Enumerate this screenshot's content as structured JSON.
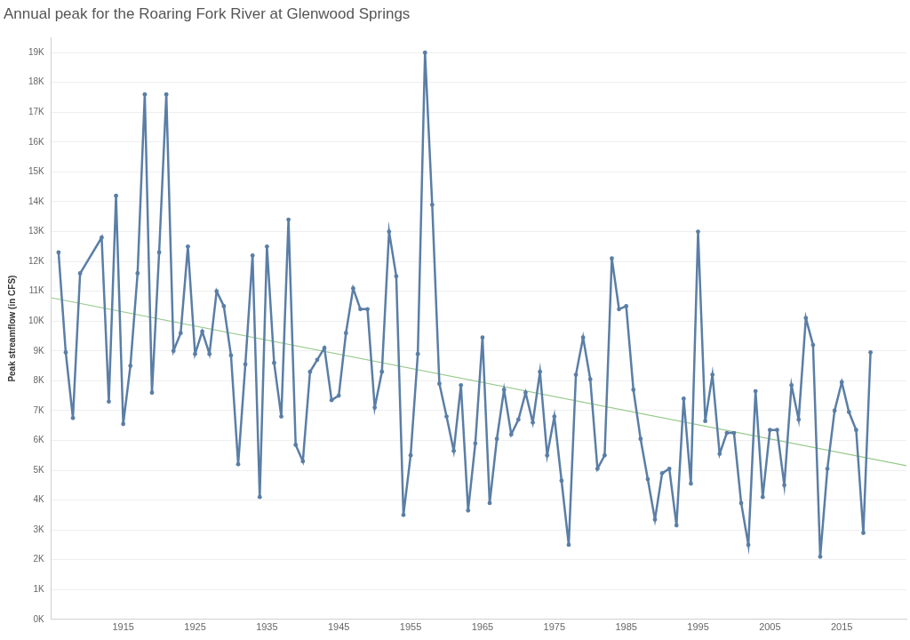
{
  "chart_data": {
    "type": "line",
    "title": "Annual peak for the Roaring Fork River at Glenwood Springs",
    "y_label": "Peak streamflow (in CFS)",
    "x": [
      1906,
      1907,
      1908,
      1909,
      1912,
      1913,
      1914,
      1915,
      1916,
      1917,
      1918,
      1919,
      1920,
      1921,
      1922,
      1923,
      1924,
      1925,
      1926,
      1927,
      1928,
      1929,
      1930,
      1931,
      1932,
      1933,
      1934,
      1935,
      1936,
      1937,
      1938,
      1939,
      1940,
      1941,
      1942,
      1943,
      1944,
      1945,
      1946,
      1947,
      1948,
      1949,
      1950,
      1951,
      1952,
      1953,
      1954,
      1955,
      1956,
      1957,
      1958,
      1959,
      1960,
      1961,
      1962,
      1963,
      1964,
      1965,
      1966,
      1967,
      1968,
      1969,
      1970,
      1971,
      1972,
      1973,
      1974,
      1975,
      1976,
      1977,
      1978,
      1979,
      1980,
      1981,
      1982,
      1983,
      1984,
      1985,
      1986,
      1987,
      1988,
      1989,
      1990,
      1991,
      1992,
      1993,
      1994,
      1995,
      1996,
      1997,
      1998,
      1999,
      2000,
      2001,
      2002,
      2003,
      2004,
      2005,
      2006,
      2007,
      2008,
      2009,
      2010,
      2011,
      2012,
      2013,
      2014,
      2015,
      2016,
      2017,
      2018,
      2019
    ],
    "values": [
      12300,
      8950,
      6750,
      11600,
      12800,
      7300,
      14200,
      6550,
      8500,
      11600,
      17600,
      7600,
      12300,
      17600,
      9000,
      9600,
      12500,
      8900,
      9650,
      8900,
      11000,
      10500,
      8850,
      5200,
      8550,
      12200,
      4100,
      12500,
      8600,
      6800,
      13400,
      5850,
      5300,
      8300,
      8700,
      9100,
      7350,
      7500,
      9600,
      11100,
      10400,
      10400,
      7100,
      8300,
      13000,
      11500,
      3500,
      5500,
      8900,
      19000,
      13900,
      7900,
      6800,
      5650,
      7850,
      3650,
      5900,
      9450,
      3900,
      6050,
      7700,
      6200,
      6700,
      7600,
      6600,
      8300,
      5500,
      6800,
      4650,
      2500,
      8200,
      9450,
      8050,
      5050,
      5500,
      12100,
      10400,
      10500,
      7700,
      6050,
      4700,
      3350,
      4900,
      5050,
      3150,
      7400,
      4550,
      13000,
      6650,
      8200,
      5550,
      6250,
      6250,
      3900,
      2500,
      7650,
      4100,
      6350,
      6350,
      4500,
      7850,
      6700,
      10100,
      9200,
      2100,
      5050,
      7000,
      7950,
      6950,
      6350,
      2900,
      8950
    ],
    "color": "#5a7ea6",
    "marker": "circle",
    "trend": {
      "x": [
        1905,
        2024
      ],
      "values": [
        10780,
        5150
      ],
      "color": "#96c98a"
    },
    "xlim": [
      1905,
      2024
    ],
    "xticks": [
      1915,
      1925,
      1935,
      1945,
      1955,
      1965,
      1975,
      1985,
      1995,
      2005,
      2015
    ],
    "ylim": [
      0,
      19500
    ],
    "yticks": [
      {
        "value": 0,
        "label": "0K"
      },
      {
        "value": 1000,
        "label": "1K"
      },
      {
        "value": 2000,
        "label": "2K"
      },
      {
        "value": 3000,
        "label": "3K"
      },
      {
        "value": 4000,
        "label": "4K"
      },
      {
        "value": 5000,
        "label": "5K"
      },
      {
        "value": 6000,
        "label": "6K"
      },
      {
        "value": 7000,
        "label": "7K"
      },
      {
        "value": 8000,
        "label": "8K"
      },
      {
        "value": 9000,
        "label": "9K"
      },
      {
        "value": 10000,
        "label": "10K"
      },
      {
        "value": 11000,
        "label": "11K"
      },
      {
        "value": 12000,
        "label": "12K"
      },
      {
        "value": 13000,
        "label": "13K"
      },
      {
        "value": 14000,
        "label": "14K"
      },
      {
        "value": 15000,
        "label": "15K"
      },
      {
        "value": 16000,
        "label": "16K"
      },
      {
        "value": 17000,
        "label": "17K"
      },
      {
        "value": 18000,
        "label": "18K"
      },
      {
        "value": 19000,
        "label": "19K"
      }
    ],
    "grid": "y"
  }
}
